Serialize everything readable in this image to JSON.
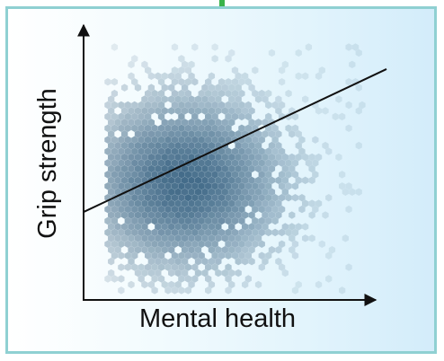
{
  "chart_data": {
    "type": "scatter",
    "subtype": "hexbin-density",
    "title": "",
    "xlabel": "Mental health",
    "ylabel": "Grip strength",
    "grid": false,
    "legend": "none",
    "tick_labels": false,
    "density_color": "#1f4d70",
    "panel_border_color": "#8fd0d2",
    "accent_tick_color": "#39b34a",
    "xlim": [
      0,
      100
    ],
    "ylim": [
      0,
      100
    ],
    "density_cloud": {
      "center": [
        33,
        43
      ],
      "spread": [
        22,
        21
      ],
      "x_range": [
        8,
        92
      ],
      "y_range": [
        3,
        92
      ]
    },
    "fit_line": [
      {
        "x": 0,
        "y": 32
      },
      {
        "x": 100,
        "y": 84
      }
    ]
  }
}
